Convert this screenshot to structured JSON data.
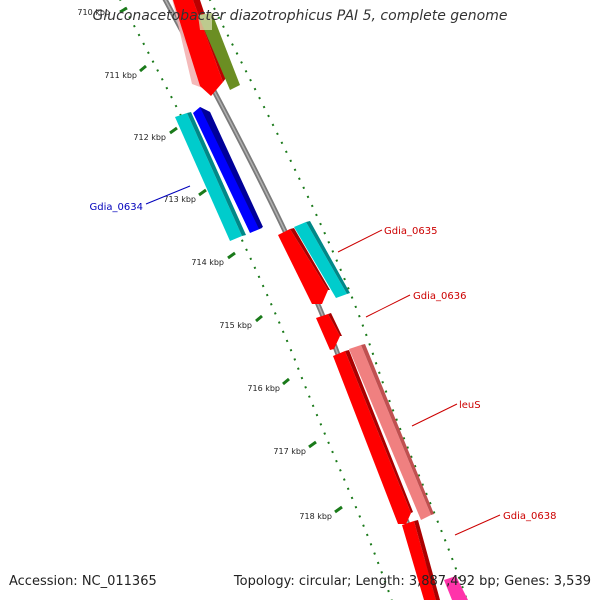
{
  "title": "Gluconacetobacter diazotrophicus PAI 5, complete genome",
  "footer": {
    "accession": "Accession: NC_011365",
    "summary": "Topology: circular; Length: 3,887,492 bp; Genes: 3,539"
  },
  "colors": {
    "backbone": "#7a7a7a",
    "tick": "#1a7a1a",
    "forward_label": "#cc0000",
    "reverse_label": "#0000bb",
    "red": "#ff0000",
    "cyan": "#00cccc",
    "blue": "#0000ff",
    "pink": "#f08080",
    "olive": "#6b8e23",
    "magenta": "#ff33aa"
  },
  "ticks": [
    {
      "label": "710 kbp"
    },
    {
      "label": "711 kbp"
    },
    {
      "label": "712 kbp"
    },
    {
      "label": "713 kbp"
    },
    {
      "label": "714 kbp"
    },
    {
      "label": "715 kbp"
    },
    {
      "label": "716 kbp"
    },
    {
      "label": "717 kbp"
    },
    {
      "label": "718 kbp"
    }
  ],
  "gene_labels": [
    {
      "name": "Gdia_0634",
      "strand": "reverse"
    },
    {
      "name": "Gdia_0635",
      "strand": "forward"
    },
    {
      "name": "Gdia_0636",
      "strand": "forward"
    },
    {
      "name": "leuS",
      "strand": "forward"
    },
    {
      "name": "Gdia_0638",
      "strand": "forward"
    }
  ]
}
